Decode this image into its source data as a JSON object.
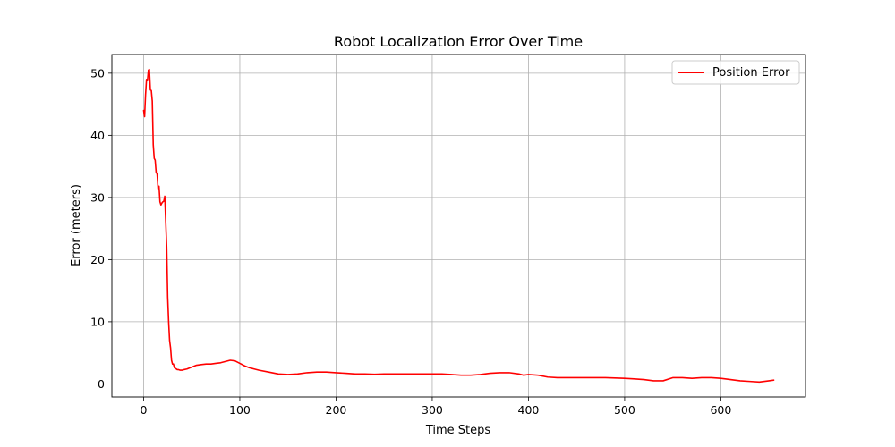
{
  "chart_data": {
    "type": "line",
    "title": "Robot Localization Error Over Time",
    "xlabel": "Time Steps",
    "ylabel": "Error (meters)",
    "xlim": [
      -33,
      688
    ],
    "ylim": [
      -2.1,
      53
    ],
    "xticks": [
      0,
      100,
      200,
      300,
      400,
      500,
      600
    ],
    "yticks": [
      0,
      10,
      20,
      30,
      40,
      50
    ],
    "grid": true,
    "legend_position": "top-right",
    "series": [
      {
        "name": "Position Error",
        "color": "#ff0000",
        "x": [
          0,
          1,
          2,
          3,
          4,
          5,
          6,
          7,
          8,
          9,
          10,
          11,
          12,
          13,
          14,
          15,
          16,
          17,
          18,
          19,
          20,
          21,
          22,
          23,
          24,
          25,
          26,
          27,
          28,
          29,
          30,
          31,
          32,
          33,
          34,
          35,
          36,
          38,
          40,
          42,
          45,
          50,
          55,
          60,
          65,
          70,
          75,
          80,
          85,
          90,
          95,
          100,
          105,
          110,
          115,
          120,
          130,
          140,
          150,
          160,
          170,
          180,
          190,
          200,
          210,
          220,
          230,
          240,
          250,
          260,
          270,
          280,
          290,
          300,
          310,
          320,
          330,
          340,
          350,
          360,
          370,
          380,
          390,
          395,
          400,
          410,
          420,
          430,
          440,
          450,
          460,
          470,
          480,
          490,
          500,
          510,
          520,
          530,
          540,
          550,
          560,
          570,
          580,
          590,
          600,
          610,
          620,
          630,
          640,
          650,
          655
        ],
        "y": [
          44,
          43,
          46.5,
          49,
          48.8,
          50.5,
          50.6,
          47.3,
          47.2,
          45.5,
          38.5,
          36.3,
          36,
          34,
          33.8,
          31.4,
          31.8,
          29.3,
          28.8,
          29.1,
          29.3,
          29.4,
          30.2,
          26,
          22,
          14,
          10,
          7,
          5.8,
          3.8,
          3.2,
          3.2,
          2.6,
          2.5,
          2.4,
          2.3,
          2.3,
          2.2,
          2.2,
          2.3,
          2.4,
          2.7,
          3.0,
          3.1,
          3.2,
          3.2,
          3.3,
          3.4,
          3.6,
          3.8,
          3.7,
          3.3,
          2.9,
          2.6,
          2.4,
          2.2,
          1.9,
          1.6,
          1.5,
          1.6,
          1.8,
          1.9,
          1.9,
          1.8,
          1.7,
          1.6,
          1.6,
          1.55,
          1.6,
          1.6,
          1.6,
          1.6,
          1.6,
          1.6,
          1.6,
          1.5,
          1.4,
          1.4,
          1.5,
          1.7,
          1.8,
          1.8,
          1.6,
          1.4,
          1.5,
          1.4,
          1.1,
          1.0,
          1.0,
          1.0,
          1.0,
          1.0,
          1.0,
          0.95,
          0.9,
          0.8,
          0.7,
          0.5,
          0.5,
          1.0,
          1.0,
          0.9,
          1.0,
          1.0,
          0.9,
          0.7,
          0.5,
          0.4,
          0.3,
          0.5,
          0.6
        ]
      }
    ]
  }
}
